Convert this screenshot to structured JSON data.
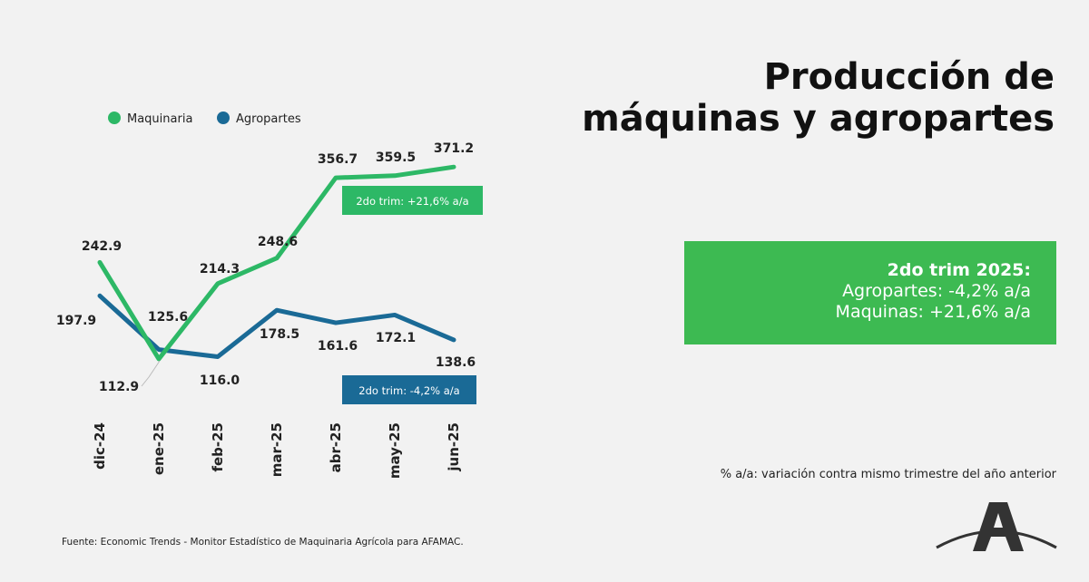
{
  "page": {
    "title_line1": "Producción de",
    "title_line2": "máquinas y agropartes",
    "summary": {
      "heading": "2do trim 2025:",
      "line1": "Agropartes: -4,2% a/a",
      "line2": "Maquinas: +21,6% a/a"
    },
    "note": "% a/a: variación contra mismo trimestre del año anterior",
    "source": "Fuente: Economic Trends - Monitor Estadístico de Maquinaria Agrícola para AFAMAC."
  },
  "colors": {
    "maquinaria": "#2db866",
    "agropartes": "#1a6a96",
    "summary_bg": "#3dba52"
  },
  "chart_data": {
    "type": "line",
    "categories": [
      "dic-24",
      "ene-25",
      "feb-25",
      "mar-25",
      "abr-25",
      "may-25",
      "jun-25"
    ],
    "series": [
      {
        "name": "Maquinaria",
        "values": [
          242.9,
          112.9,
          214.3,
          248.6,
          356.7,
          359.5,
          371.2
        ],
        "color": "#2db866"
      },
      {
        "name": "Agropartes",
        "values": [
          197.9,
          125.6,
          116.0,
          178.5,
          161.6,
          172.1,
          138.6
        ],
        "color": "#1a6a96"
      }
    ],
    "value_labels": {
      "Maquinaria": [
        "242.9",
        "112.9",
        "214.3",
        "248.6",
        "356.7",
        "359.5",
        "371.2"
      ],
      "Agropartes": [
        "197.9",
        "125.6",
        "116.0",
        "178.5",
        "161.6",
        "172.1",
        "138.6"
      ]
    },
    "annotations": [
      {
        "text": "2do trim: +21,6% a/a",
        "series": "Maquinaria"
      },
      {
        "text": "2do trim: -4,2% a/a",
        "series": "Agropartes"
      }
    ],
    "legend": "top-left",
    "grid": false
  }
}
